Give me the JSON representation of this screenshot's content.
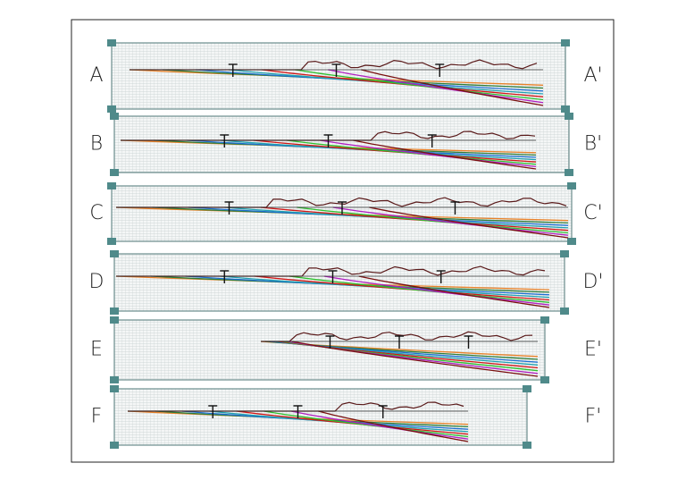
{
  "sections": [
    {
      "left": "A",
      "right": "A'"
    },
    {
      "left": "B",
      "right": "B'"
    },
    {
      "left": "C",
      "right": "C'"
    },
    {
      "left": "D",
      "right": "D'"
    },
    {
      "left": "E",
      "right": "E'"
    },
    {
      "left": "F",
      "right": "F'"
    }
  ]
}
